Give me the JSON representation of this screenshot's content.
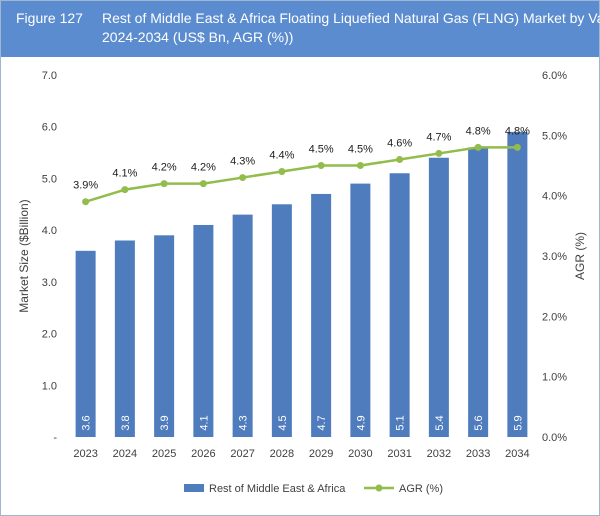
{
  "figure": {
    "number": "Figure 127",
    "title_lines": [
      "Rest of Middle East & Africa Floating Liquefied Natural Gas (FLNG) Market by Value,",
      "2024-2034 (US$ Bn, AGR (%))"
    ]
  },
  "colors": {
    "header_bg": "#5b8ccf",
    "bar": "#4f7cbd",
    "line": "#92bc4c",
    "axis_text": "#404040"
  },
  "chart_data": {
    "type": "bar+line",
    "categories": [
      "2023",
      "2024",
      "2025",
      "2026",
      "2027",
      "2028",
      "2029",
      "2030",
      "2031",
      "2032",
      "2033",
      "2034"
    ],
    "series": [
      {
        "name": "Rest of Middle East & Africa",
        "type": "bar",
        "axis": "left",
        "values": [
          3.6,
          3.8,
          3.9,
          4.1,
          4.3,
          4.5,
          4.7,
          4.9,
          5.1,
          5.4,
          5.6,
          5.9
        ],
        "labels": [
          "3.6",
          "3.8",
          "3.9",
          "4.1",
          "4.3",
          "4.5",
          "4.7",
          "4.9",
          "5.1",
          "5.4",
          "5.6",
          "5.9"
        ]
      },
      {
        "name": "AGR (%)",
        "type": "line",
        "axis": "right",
        "values": [
          3.9,
          4.1,
          4.2,
          4.2,
          4.3,
          4.4,
          4.5,
          4.5,
          4.6,
          4.7,
          4.8,
          4.8
        ],
        "labels": [
          "3.9%",
          "4.1%",
          "4.2%",
          "4.2%",
          "4.3%",
          "4.4%",
          "4.5%",
          "4.5%",
          "4.6%",
          "4.7%",
          "4.8%",
          "4.8%"
        ]
      }
    ],
    "ylabel": "Market Size ($Billion)",
    "ylabel_right": "AGR (%)",
    "ylim": [
      0,
      7
    ],
    "ylim_right": [
      0,
      6
    ],
    "yticks": [
      "-",
      "1.0",
      "2.0",
      "3.0",
      "4.0",
      "5.0",
      "6.0",
      "7.0"
    ],
    "yticks_right": [
      "0.0%",
      "1.0%",
      "2.0%",
      "3.0%",
      "4.0%",
      "5.0%",
      "6.0%"
    ],
    "grid": false,
    "legend_position": "bottom"
  }
}
